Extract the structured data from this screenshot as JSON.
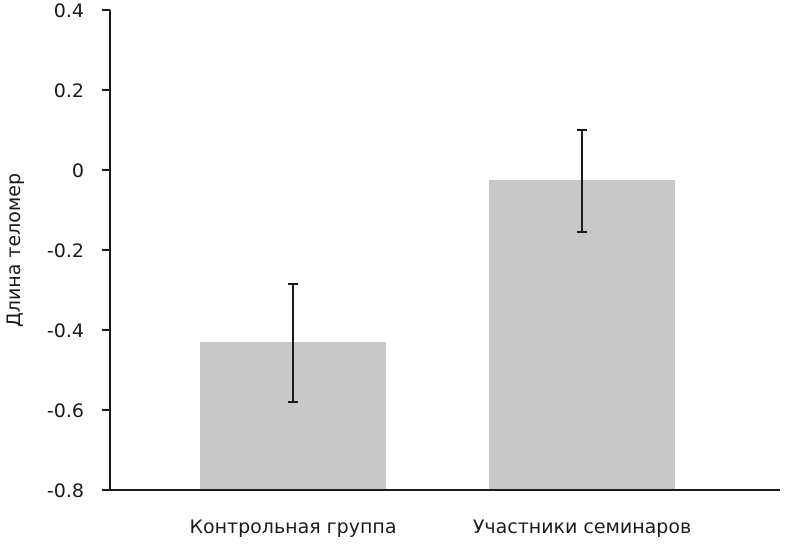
{
  "chart_data": {
    "type": "bar",
    "title": "",
    "xlabel": "",
    "ylabel": "Длина теломер",
    "categories": [
      "Контрольная группа",
      "Участники семинаров"
    ],
    "values": [
      -0.43,
      -0.025
    ],
    "error_low": [
      -0.58,
      -0.155
    ],
    "error_high": [
      -0.285,
      0.1
    ],
    "ylim": [
      -0.8,
      0.4
    ],
    "yticks": [
      "0.4",
      "0.2",
      "0",
      "-0.2",
      "-0.4",
      "-0.6",
      "-0.8"
    ],
    "ytick_values": [
      0.4,
      0.2,
      0,
      -0.2,
      -0.4,
      -0.6,
      -0.8
    ],
    "grid": false,
    "legend": "none",
    "bar_color": "#c8c8c8",
    "axis_color": "#1a1a1a",
    "error_color": "#1a1a1a"
  }
}
